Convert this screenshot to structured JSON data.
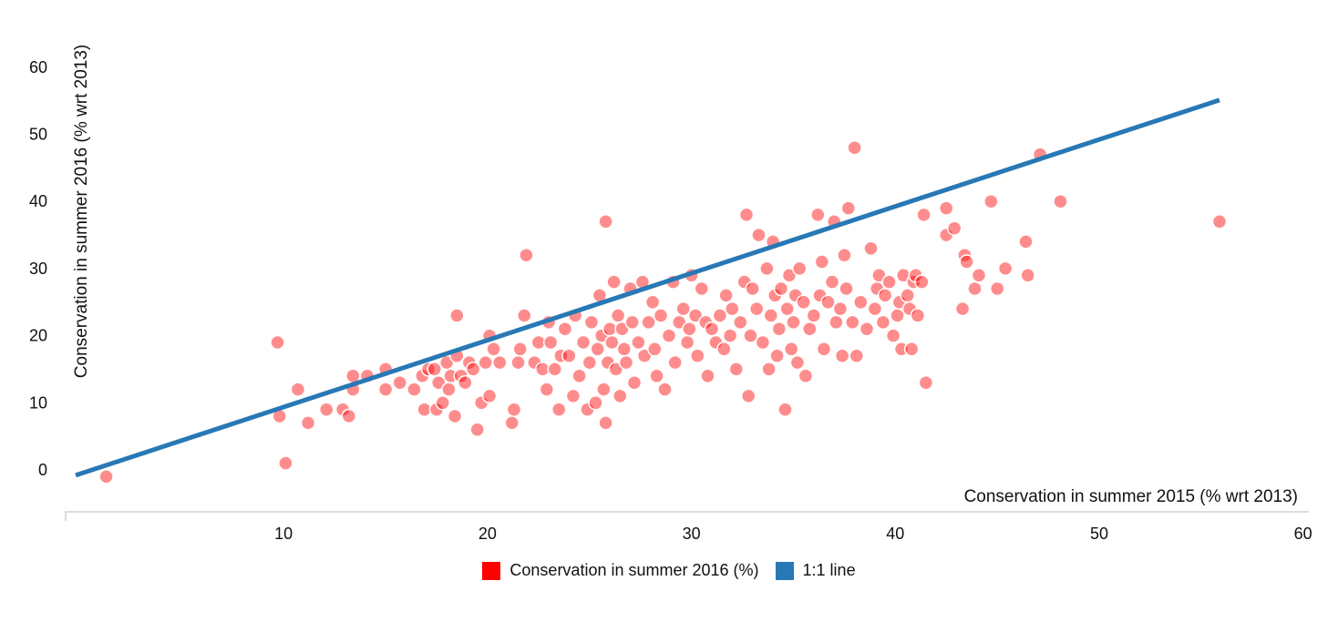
{
  "chart_data": {
    "type": "scatter",
    "xlabel": "Conservation in summer 2015 (% wrt 2013)",
    "ylabel": "Conservation in summer 2016 (% wrt 2013)",
    "xlim": [
      0,
      60
    ],
    "ylim": [
      -5,
      65
    ],
    "x_ticks": [
      "10",
      "20",
      "30",
      "40",
      "50",
      "60"
    ],
    "y_ticks": [
      "0",
      "10",
      "20",
      "30",
      "40",
      "50",
      "60"
    ],
    "x_tick_values": [
      10,
      20,
      30,
      40,
      50,
      60
    ],
    "y_tick_values": [
      0,
      10,
      20,
      30,
      40,
      50,
      60
    ],
    "grid": false,
    "legend_position": "bottom-center",
    "series": [
      {
        "name": "Conservation in summer 2016 (%)",
        "color": "#ff0000",
        "kind": "points",
        "points": [
          [
            1.3,
            -1
          ],
          [
            9.7,
            19
          ],
          [
            9.8,
            8
          ],
          [
            10.1,
            1
          ],
          [
            10.7,
            12
          ],
          [
            11.2,
            7
          ],
          [
            12.1,
            9
          ],
          [
            12.9,
            9
          ],
          [
            13.2,
            8
          ],
          [
            13.4,
            14
          ],
          [
            13.4,
            12
          ],
          [
            14.1,
            14
          ],
          [
            15,
            15
          ],
          [
            15,
            12
          ],
          [
            15.7,
            13
          ],
          [
            16.4,
            12
          ],
          [
            16.8,
            14
          ],
          [
            16.9,
            9
          ],
          [
            17.1,
            15
          ],
          [
            17.4,
            15
          ],
          [
            17.5,
            9
          ],
          [
            17.6,
            13
          ],
          [
            17.8,
            10
          ],
          [
            18,
            16
          ],
          [
            18.1,
            12
          ],
          [
            18.2,
            14
          ],
          [
            18.4,
            8
          ],
          [
            18.5,
            17
          ],
          [
            18.5,
            23
          ],
          [
            18.7,
            14
          ],
          [
            18.9,
            13
          ],
          [
            19.1,
            16
          ],
          [
            19.3,
            15
          ],
          [
            19.5,
            6
          ],
          [
            19.7,
            10
          ],
          [
            19.9,
            16
          ],
          [
            20.1,
            11
          ],
          [
            20.1,
            20
          ],
          [
            20.3,
            18
          ],
          [
            20.6,
            16
          ],
          [
            21.2,
            7
          ],
          [
            21.3,
            9
          ],
          [
            21.5,
            16
          ],
          [
            21.6,
            18
          ],
          [
            21.8,
            23
          ],
          [
            21.9,
            32
          ],
          [
            22.3,
            16
          ],
          [
            22.5,
            19
          ],
          [
            22.7,
            15
          ],
          [
            22.9,
            12
          ],
          [
            23,
            22
          ],
          [
            23.1,
            19
          ],
          [
            23.3,
            15
          ],
          [
            23.5,
            9
          ],
          [
            23.6,
            17
          ],
          [
            23.8,
            21
          ],
          [
            24,
            17
          ],
          [
            24.2,
            11
          ],
          [
            24.3,
            23
          ],
          [
            24.5,
            14
          ],
          [
            24.7,
            19
          ],
          [
            24.9,
            9
          ],
          [
            25,
            16
          ],
          [
            25.1,
            22
          ],
          [
            25.3,
            10
          ],
          [
            25.4,
            18
          ],
          [
            25.5,
            26
          ],
          [
            25.6,
            20
          ],
          [
            25.7,
            12
          ],
          [
            25.8,
            7
          ],
          [
            25.8,
            37
          ],
          [
            25.9,
            16
          ],
          [
            26,
            21
          ],
          [
            26.1,
            19
          ],
          [
            26.2,
            28
          ],
          [
            26.3,
            15
          ],
          [
            26.4,
            23
          ],
          [
            26.5,
            11
          ],
          [
            26.6,
            21
          ],
          [
            26.7,
            18
          ],
          [
            26.8,
            16
          ],
          [
            27,
            27
          ],
          [
            27.1,
            22
          ],
          [
            27.2,
            13
          ],
          [
            27.4,
            19
          ],
          [
            27.6,
            28
          ],
          [
            27.7,
            17
          ],
          [
            27.9,
            22
          ],
          [
            28.1,
            25
          ],
          [
            28.2,
            18
          ],
          [
            28.3,
            14
          ],
          [
            28.5,
            23
          ],
          [
            28.7,
            12
          ],
          [
            28.9,
            20
          ],
          [
            29.1,
            28
          ],
          [
            29.2,
            16
          ],
          [
            29.4,
            22
          ],
          [
            29.6,
            24
          ],
          [
            29.8,
            19
          ],
          [
            29.9,
            21
          ],
          [
            30,
            29
          ],
          [
            30.2,
            23
          ],
          [
            30.3,
            17
          ],
          [
            30.5,
            27
          ],
          [
            30.7,
            22
          ],
          [
            30.8,
            14
          ],
          [
            31,
            21
          ],
          [
            31.2,
            19
          ],
          [
            31.4,
            23
          ],
          [
            31.6,
            18
          ],
          [
            31.7,
            26
          ],
          [
            31.9,
            20
          ],
          [
            32,
            24
          ],
          [
            32.2,
            15
          ],
          [
            32.4,
            22
          ],
          [
            32.6,
            28
          ],
          [
            32.7,
            38
          ],
          [
            32.8,
            11
          ],
          [
            32.9,
            20
          ],
          [
            33,
            27
          ],
          [
            33.2,
            24
          ],
          [
            33.3,
            35
          ],
          [
            33.5,
            19
          ],
          [
            33.7,
            30
          ],
          [
            33.8,
            15
          ],
          [
            33.9,
            23
          ],
          [
            34,
            34
          ],
          [
            34.1,
            26
          ],
          [
            34.2,
            17
          ],
          [
            34.3,
            21
          ],
          [
            34.4,
            27
          ],
          [
            34.6,
            9
          ],
          [
            34.7,
            24
          ],
          [
            34.8,
            29
          ],
          [
            34.9,
            18
          ],
          [
            35,
            22
          ],
          [
            35.1,
            26
          ],
          [
            35.2,
            16
          ],
          [
            35.3,
            30
          ],
          [
            35.5,
            25
          ],
          [
            35.6,
            14
          ],
          [
            35.8,
            21
          ],
          [
            36,
            23
          ],
          [
            36.2,
            38
          ],
          [
            36.3,
            26
          ],
          [
            36.4,
            31
          ],
          [
            36.5,
            18
          ],
          [
            36.7,
            25
          ],
          [
            36.9,
            28
          ],
          [
            37,
            37
          ],
          [
            37.1,
            22
          ],
          [
            37.3,
            24
          ],
          [
            37.4,
            17
          ],
          [
            37.5,
            32
          ],
          [
            37.6,
            27
          ],
          [
            37.7,
            39
          ],
          [
            37.9,
            22
          ],
          [
            38,
            48
          ],
          [
            38.1,
            17
          ],
          [
            38.3,
            25
          ],
          [
            38.6,
            21
          ],
          [
            38.8,
            33
          ],
          [
            39,
            24
          ],
          [
            39.1,
            27
          ],
          [
            39.2,
            29
          ],
          [
            39.4,
            22
          ],
          [
            39.5,
            26
          ],
          [
            39.7,
            28
          ],
          [
            39.9,
            20
          ],
          [
            40.1,
            23
          ],
          [
            40.2,
            25
          ],
          [
            40.3,
            18
          ],
          [
            40.4,
            29
          ],
          [
            40.6,
            26
          ],
          [
            40.7,
            24
          ],
          [
            40.8,
            18
          ],
          [
            40.9,
            28
          ],
          [
            41,
            29
          ],
          [
            41.1,
            23
          ],
          [
            41.3,
            28
          ],
          [
            41.4,
            38
          ],
          [
            41.5,
            13
          ],
          [
            42.5,
            39
          ],
          [
            42.5,
            35
          ],
          [
            42.9,
            36
          ],
          [
            43.3,
            24
          ],
          [
            43.4,
            32
          ],
          [
            43.5,
            31
          ],
          [
            43.9,
            27
          ],
          [
            44.1,
            29
          ],
          [
            44.7,
            40
          ],
          [
            45,
            27
          ],
          [
            45.4,
            30
          ],
          [
            46.4,
            34
          ],
          [
            46.5,
            29
          ],
          [
            47.1,
            47
          ],
          [
            48.1,
            40
          ],
          [
            55.9,
            37
          ]
        ]
      },
      {
        "name": "1:1 line",
        "color": "#2878b5",
        "kind": "line",
        "points": [
          [
            -0.2,
            -0.8
          ],
          [
            55.9,
            55.1
          ]
        ]
      }
    ]
  }
}
